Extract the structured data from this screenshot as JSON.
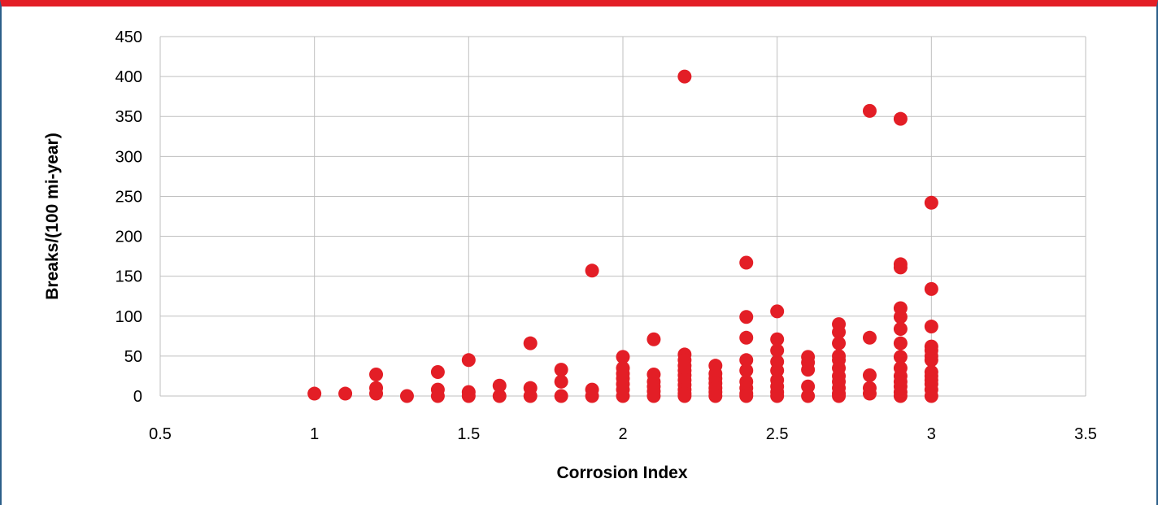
{
  "chart_data": {
    "type": "scatter",
    "title": "",
    "xlabel": "Corrosion Index",
    "ylabel": "Breaks/(100 mi-year)",
    "xlim": [
      0.5,
      3.5
    ],
    "ylim": [
      0,
      450
    ],
    "x_ticks": [
      "0.5",
      "1",
      "1.5",
      "2",
      "2.5",
      "3",
      "3.5"
    ],
    "y_ticks": [
      "0",
      "50",
      "100",
      "150",
      "200",
      "250",
      "300",
      "350",
      "400",
      "450"
    ],
    "grid": true,
    "marker_color": "#e31e26",
    "points": [
      [
        1.0,
        3
      ],
      [
        1.1,
        3
      ],
      [
        1.2,
        27
      ],
      [
        1.2,
        10
      ],
      [
        1.2,
        3
      ],
      [
        1.3,
        0
      ],
      [
        1.4,
        30
      ],
      [
        1.4,
        8
      ],
      [
        1.4,
        0
      ],
      [
        1.5,
        45
      ],
      [
        1.5,
        5
      ],
      [
        1.5,
        0
      ],
      [
        1.6,
        13
      ],
      [
        1.6,
        0
      ],
      [
        1.7,
        66
      ],
      [
        1.7,
        10
      ],
      [
        1.7,
        0
      ],
      [
        1.8,
        33
      ],
      [
        1.8,
        18
      ],
      [
        1.8,
        0
      ],
      [
        1.9,
        157
      ],
      [
        1.9,
        8
      ],
      [
        1.9,
        0
      ],
      [
        2.0,
        49
      ],
      [
        2.0,
        35
      ],
      [
        2.0,
        28
      ],
      [
        2.0,
        22
      ],
      [
        2.0,
        15
      ],
      [
        2.0,
        8
      ],
      [
        2.0,
        0
      ],
      [
        2.1,
        71
      ],
      [
        2.1,
        27
      ],
      [
        2.1,
        18
      ],
      [
        2.1,
        12
      ],
      [
        2.1,
        6
      ],
      [
        2.1,
        0
      ],
      [
        2.2,
        400
      ],
      [
        2.2,
        52
      ],
      [
        2.2,
        45
      ],
      [
        2.2,
        38
      ],
      [
        2.2,
        32
      ],
      [
        2.2,
        26
      ],
      [
        2.2,
        20
      ],
      [
        2.2,
        14
      ],
      [
        2.2,
        8
      ],
      [
        2.2,
        3
      ],
      [
        2.2,
        0
      ],
      [
        2.3,
        38
      ],
      [
        2.3,
        28
      ],
      [
        2.3,
        22
      ],
      [
        2.3,
        16
      ],
      [
        2.3,
        10
      ],
      [
        2.3,
        5
      ],
      [
        2.3,
        0
      ],
      [
        2.4,
        167
      ],
      [
        2.4,
        99
      ],
      [
        2.4,
        73
      ],
      [
        2.4,
        45
      ],
      [
        2.4,
        32
      ],
      [
        2.4,
        18
      ],
      [
        2.4,
        10
      ],
      [
        2.4,
        3
      ],
      [
        2.4,
        0
      ],
      [
        2.5,
        106
      ],
      [
        2.5,
        71
      ],
      [
        2.5,
        57
      ],
      [
        2.5,
        43
      ],
      [
        2.5,
        32
      ],
      [
        2.5,
        20
      ],
      [
        2.5,
        12
      ],
      [
        2.5,
        5
      ],
      [
        2.5,
        0
      ],
      [
        2.6,
        49
      ],
      [
        2.6,
        42
      ],
      [
        2.6,
        33
      ],
      [
        2.6,
        12
      ],
      [
        2.6,
        0
      ],
      [
        2.7,
        90
      ],
      [
        2.7,
        80
      ],
      [
        2.7,
        66
      ],
      [
        2.7,
        50
      ],
      [
        2.7,
        45
      ],
      [
        2.7,
        35
      ],
      [
        2.7,
        25
      ],
      [
        2.7,
        18
      ],
      [
        2.7,
        10
      ],
      [
        2.7,
        3
      ],
      [
        2.7,
        0
      ],
      [
        2.8,
        357
      ],
      [
        2.8,
        73
      ],
      [
        2.8,
        26
      ],
      [
        2.8,
        10
      ],
      [
        2.8,
        3
      ],
      [
        2.9,
        347
      ],
      [
        2.9,
        165
      ],
      [
        2.9,
        161
      ],
      [
        2.9,
        110
      ],
      [
        2.9,
        99
      ],
      [
        2.9,
        84
      ],
      [
        2.9,
        66
      ],
      [
        2.9,
        49
      ],
      [
        2.9,
        35
      ],
      [
        2.9,
        25
      ],
      [
        2.9,
        18
      ],
      [
        2.9,
        12
      ],
      [
        2.9,
        5
      ],
      [
        2.9,
        0
      ],
      [
        3.0,
        242
      ],
      [
        3.0,
        134
      ],
      [
        3.0,
        87
      ],
      [
        3.0,
        62
      ],
      [
        3.0,
        57
      ],
      [
        3.0,
        50
      ],
      [
        3.0,
        45
      ],
      [
        3.0,
        30
      ],
      [
        3.0,
        25
      ],
      [
        3.0,
        20
      ],
      [
        3.0,
        15
      ],
      [
        3.0,
        8
      ],
      [
        3.0,
        0
      ]
    ]
  }
}
